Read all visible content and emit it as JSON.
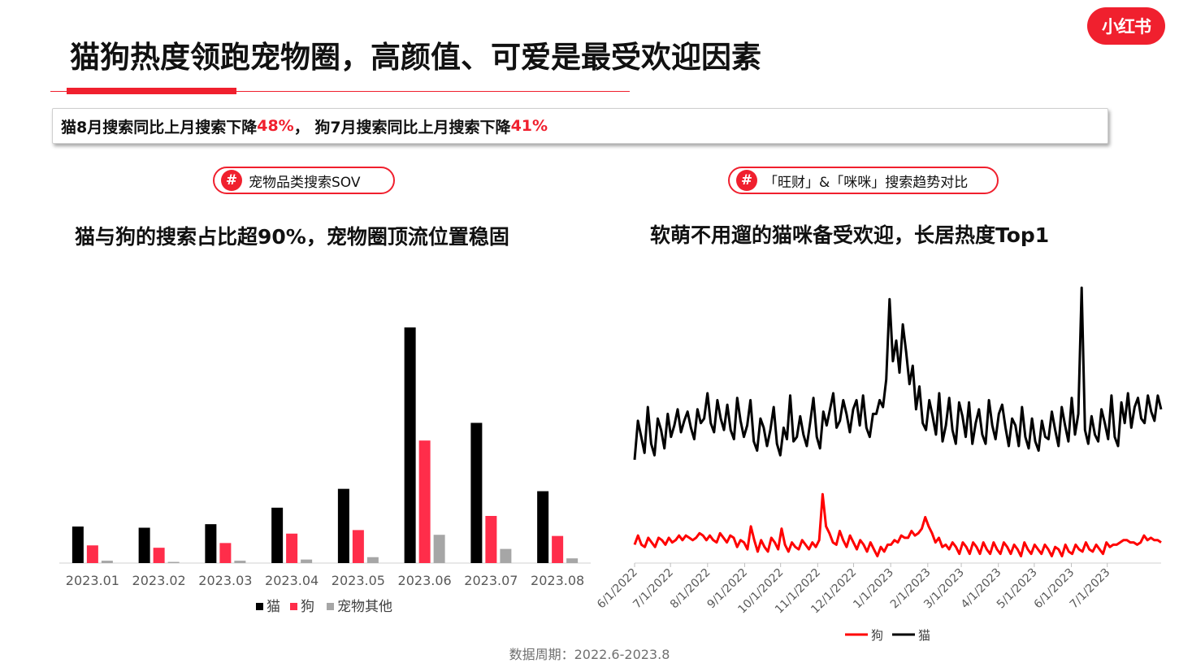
{
  "logo": {
    "text": "小红书"
  },
  "header": {
    "title": "猫狗热度领跑宠物圈，高颜值、可爱是最受欢迎因素"
  },
  "callout": {
    "part1": "猫8月搜索同比上月搜索下降",
    "pct1": "48%",
    "part2": "， 狗7月搜索同比上月搜索下降",
    "pct2": "41%"
  },
  "left_panel": {
    "tag": "宠物品类搜索SOV",
    "headline": "猫与狗的搜索占比超90%，宠物圈顶流位置稳固"
  },
  "right_panel": {
    "tag": "「旺财」&「咪咪」搜索趋势对比",
    "headline": "软萌不用遛的猫咪备受欢迎，长居热度Top1"
  },
  "footer": {
    "text": "数据周期：2022.6-2023.8"
  },
  "colors": {
    "cat": "#000000",
    "dog": "#ff2d4a",
    "other": "#a6a6a6",
    "accent": "#f0202e",
    "dog_line": "#ff0000"
  },
  "chart_data": [
    {
      "type": "bar",
      "categories": [
        "2023.01",
        "2023.02",
        "2023.03",
        "2023.04",
        "2023.05",
        "2023.06",
        "2023.07",
        "2023.08"
      ],
      "series": [
        {
          "name": "猫",
          "values": [
            15.5,
            15,
            16.5,
            23.5,
            31.5,
            100,
            59.5,
            30.5
          ]
        },
        {
          "name": "狗",
          "values": [
            7.5,
            6.5,
            8.5,
            12.5,
            14,
            52,
            20,
            11.5
          ]
        },
        {
          "name": "宠物其他",
          "values": [
            1,
            0.5,
            1,
            1.5,
            2.5,
            12,
            6,
            2
          ]
        }
      ],
      "ylim": [
        0,
        100
      ],
      "legend": "bottom"
    },
    {
      "type": "line",
      "x_ticks": [
        "6/1/2022",
        "7/1/2022",
        "8/1/2022",
        "9/1/2022",
        "10/1/2022",
        "11/1/2022",
        "12/1/2022",
        "1/1/2023",
        "2/1/2023",
        "3/1/2023",
        "4/1/2023",
        "5/1/2023",
        "6/1/2023",
        "7/1/2023"
      ],
      "x_range": [
        "2022-06-01",
        "2023-08-15"
      ],
      "series": [
        {
          "name": "猫",
          "values": [
            45,
            62,
            55,
            48,
            68,
            52,
            47,
            63,
            58,
            50,
            65,
            55,
            60,
            67,
            57,
            62,
            66,
            59,
            54,
            67,
            61,
            63,
            74,
            61,
            57,
            71,
            63,
            58,
            69,
            58,
            54,
            72,
            62,
            55,
            60,
            71,
            53,
            49,
            63,
            59,
            51,
            58,
            68,
            52,
            47,
            59,
            54,
            73,
            53,
            55,
            64,
            56,
            51,
            61,
            72,
            55,
            50,
            66,
            60,
            67,
            74,
            59,
            62,
            71,
            65,
            57,
            67,
            71,
            60,
            73,
            59,
            55,
            65,
            65,
            71,
            68,
            80,
            115,
            88,
            97,
            83,
            104,
            92,
            78,
            86,
            67,
            77,
            61,
            58,
            71,
            64,
            56,
            74,
            53,
            60,
            72,
            58,
            52,
            70,
            64,
            55,
            70,
            52,
            61,
            67,
            56,
            52,
            71,
            60,
            54,
            65,
            69,
            59,
            51,
            63,
            60,
            51,
            68,
            55,
            50,
            63,
            53,
            49,
            62,
            55,
            54,
            66,
            58,
            51,
            68,
            60,
            53,
            72,
            56,
            65,
            120,
            58,
            52,
            64,
            56,
            53,
            67,
            61,
            54,
            73,
            55,
            51,
            70,
            61,
            74,
            59,
            68,
            72,
            63,
            61,
            73,
            66,
            62,
            73,
            67
          ],
          "color": "#000000"
        },
        {
          "name": "狗",
          "values": [
            8,
            12,
            8,
            7,
            11,
            9,
            7,
            11,
            10,
            8,
            11,
            9,
            10,
            12,
            10,
            12,
            11,
            10,
            11,
            13,
            12,
            10,
            12,
            10,
            9,
            13,
            11,
            9,
            12,
            11,
            7,
            10,
            9,
            6,
            16,
            10,
            5,
            10,
            7,
            5,
            11,
            9,
            6,
            15,
            8,
            5,
            9,
            7,
            6,
            10,
            8,
            6,
            9,
            7,
            10,
            30,
            16,
            13,
            9,
            8,
            14,
            10,
            7,
            12,
            9,
            6,
            10,
            8,
            5,
            9,
            6,
            3,
            7,
            5,
            8,
            8,
            10,
            9,
            12,
            11,
            11,
            14,
            12,
            13,
            15,
            20,
            16,
            13,
            9,
            11,
            7,
            8,
            6,
            9,
            7,
            4,
            9,
            7,
            4,
            9,
            7,
            4,
            9,
            6,
            4,
            9,
            6,
            4,
            9,
            7,
            4,
            8,
            6,
            3,
            9,
            6,
            4,
            8,
            6,
            4,
            8,
            6,
            3,
            7,
            6,
            3,
            8,
            5,
            4,
            8,
            6,
            5,
            9,
            6,
            5,
            8,
            6,
            4,
            9,
            7,
            8,
            8,
            9,
            10,
            10,
            9,
            9,
            8,
            9,
            12,
            10,
            11,
            10,
            10,
            9
          ],
          "color": "#ff0000"
        }
      ],
      "ylim": [
        0,
        125
      ],
      "legend": "bottom"
    }
  ]
}
